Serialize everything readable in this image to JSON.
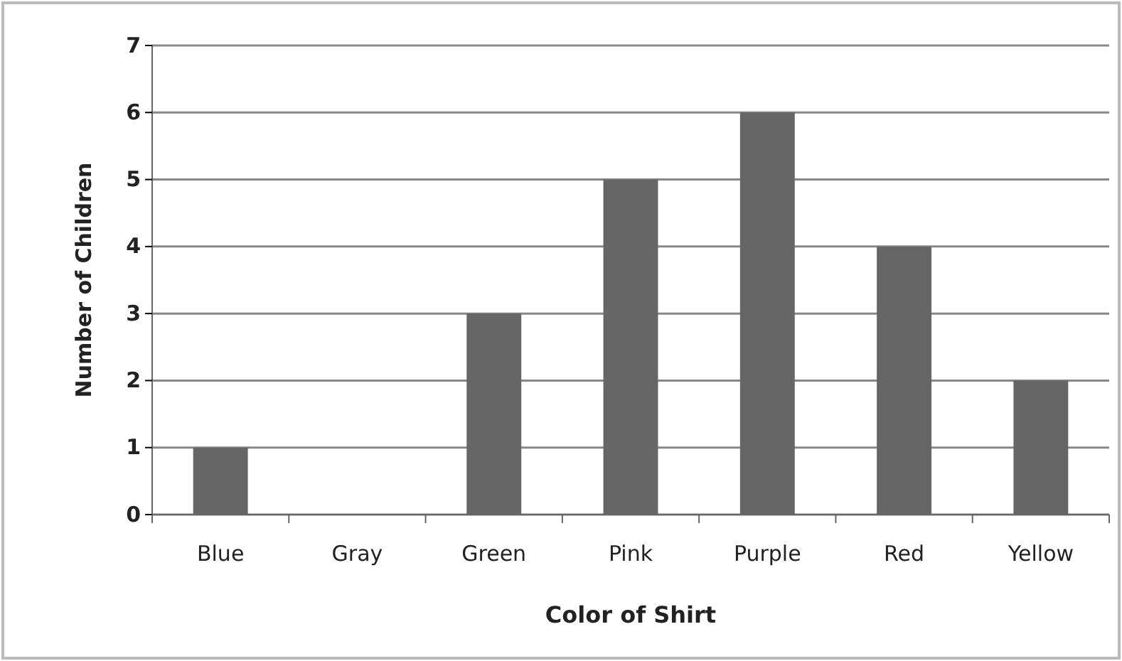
{
  "chart_data": {
    "type": "bar",
    "xlabel": "Color of Shirt",
    "ylabel": "Number of Children",
    "categories": [
      "Blue",
      "Gray",
      "Green",
      "Pink",
      "Purple",
      "Red",
      "Yellow"
    ],
    "values": [
      1,
      0,
      3,
      5,
      6,
      4,
      2
    ],
    "color": "#666666",
    "ylim": [
      0,
      7
    ],
    "yticks": [
      0,
      1,
      2,
      3,
      4,
      5,
      6,
      7
    ],
    "grid": "y"
  }
}
